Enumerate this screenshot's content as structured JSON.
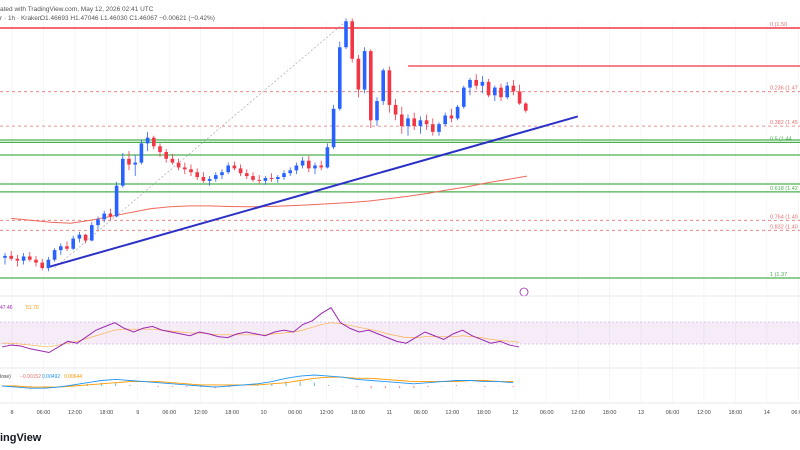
{
  "header": {
    "published": "ated with TradingView.com, May 12, 2026 02:41 UTC",
    "symbol": "r · 1h · Kraken",
    "ohlc": "O1.46693 H1.47046 L1.46030 C1.46067 −0.00621 (−0.42%)"
  },
  "brand": "ingView",
  "rsi_values": [
    "47.46",
    "51.70"
  ],
  "macd_label": "lose)",
  "macd_values": [
    "−0.00152",
    "0.00492",
    "0.00644"
  ],
  "colors": {
    "bull": "#2962ff",
    "bear": "#f23645",
    "trendline": "#2b31c6",
    "fib_red": "#e57373",
    "fib_green": "#4caf50",
    "ma": "#ef6a5a",
    "rsi": "#9c27b0",
    "macd": "#2196f3",
    "signal": "#ff9800"
  },
  "chart_data": {
    "type": "candlestick",
    "interval": "1h",
    "exchange": "Kraken",
    "x_ticks": [
      "8",
      "06:00",
      "12:00",
      "18:00",
      "9",
      "06:00",
      "12:00",
      "18:00",
      "10",
      "06:00",
      "12:00",
      "18:00",
      "11",
      "06:00",
      "12:00",
      "18:00",
      "12",
      "06:00",
      "12:00",
      "18:00",
      "13",
      "06:00",
      "12:00",
      "18:00",
      "14",
      "06:00"
    ],
    "fib_levels": [
      {
        "label": "0 (1.50",
        "ratio": 0,
        "price": 1.5,
        "color": "fib_red"
      },
      {
        "label": "0.236 (1.47",
        "ratio": 0.236,
        "price": 1.47,
        "color": "fib_red"
      },
      {
        "label": "0.382 (1.45",
        "ratio": 0.382,
        "price": 1.45,
        "color": "fib_red"
      },
      {
        "label": "0.5 (1.44",
        "ratio": 0.5,
        "price": 1.44,
        "color": "fib_green"
      },
      {
        "label": "0.618 (1.42",
        "ratio": 0.618,
        "price": 1.42,
        "color": "fib_green"
      },
      {
        "label": "0.764 (1.40",
        "ratio": 0.764,
        "price": 1.4,
        "color": "fib_red"
      },
      {
        "label": "0.832 (1.40",
        "ratio": 0.832,
        "price": 1.4,
        "color": "fib_red"
      },
      {
        "label": "1 (1.37",
        "ratio": 1,
        "price": 1.37,
        "color": "fib_green"
      }
    ],
    "candles": [
      [
        1.3805,
        1.383,
        1.377,
        1.3815
      ],
      [
        1.3815,
        1.384,
        1.379,
        1.38
      ],
      [
        1.38,
        1.382,
        1.376,
        1.379
      ],
      [
        1.379,
        1.383,
        1.377,
        1.3812
      ],
      [
        1.3812,
        1.3835,
        1.3785,
        1.3795
      ],
      [
        1.3795,
        1.3815,
        1.376,
        1.378
      ],
      [
        1.378,
        1.38,
        1.374,
        1.3752
      ],
      [
        1.3752,
        1.381,
        1.3735,
        1.3795
      ],
      [
        1.3795,
        1.3855,
        1.3785,
        1.3845
      ],
      [
        1.3845,
        1.388,
        1.382,
        1.3865
      ],
      [
        1.3865,
        1.389,
        1.384,
        1.3852
      ],
      [
        1.3852,
        1.392,
        1.3845,
        1.3905
      ],
      [
        1.3905,
        1.394,
        1.3885,
        1.3925
      ],
      [
        1.3925,
        1.393,
        1.388,
        1.3895
      ],
      [
        1.3895,
        1.399,
        1.389,
        1.3975
      ],
      [
        1.3975,
        1.402,
        1.395,
        1.4005
      ],
      [
        1.4005,
        1.405,
        1.399,
        1.4035
      ],
      [
        1.4035,
        1.406,
        1.4,
        1.402
      ],
      [
        1.402,
        1.42,
        1.4015,
        1.418
      ],
      [
        1.418,
        1.435,
        1.417,
        1.432
      ],
      [
        1.432,
        1.436,
        1.426,
        1.429
      ],
      [
        1.429,
        1.434,
        1.423,
        1.43
      ],
      [
        1.43,
        1.442,
        1.429,
        1.44
      ],
      [
        1.44,
        1.446,
        1.436,
        1.443
      ],
      [
        1.443,
        1.444,
        1.437,
        1.4385
      ],
      [
        1.4385,
        1.44,
        1.433,
        1.4355
      ],
      [
        1.4355,
        1.437,
        1.43,
        1.432
      ],
      [
        1.432,
        1.4345,
        1.429,
        1.43
      ],
      [
        1.43,
        1.432,
        1.426,
        1.4275
      ],
      [
        1.4275,
        1.43,
        1.424,
        1.4265
      ],
      [
        1.4265,
        1.429,
        1.423,
        1.425
      ],
      [
        1.425,
        1.427,
        1.421,
        1.4225
      ],
      [
        1.4225,
        1.425,
        1.4195,
        1.4205
      ],
      [
        1.4205,
        1.423,
        1.418,
        1.4215
      ],
      [
        1.4215,
        1.425,
        1.42,
        1.4235
      ],
      [
        1.4235,
        1.4265,
        1.4215,
        1.425
      ],
      [
        1.425,
        1.43,
        1.424,
        1.4285
      ],
      [
        1.4285,
        1.4305,
        1.426,
        1.427
      ],
      [
        1.427,
        1.429,
        1.423,
        1.4245
      ],
      [
        1.4245,
        1.4265,
        1.4215,
        1.423
      ],
      [
        1.423,
        1.425,
        1.42,
        1.421
      ],
      [
        1.421,
        1.4235,
        1.419,
        1.4205
      ],
      [
        1.4205,
        1.423,
        1.4185,
        1.422
      ],
      [
        1.422,
        1.4245,
        1.42,
        1.4215
      ],
      [
        1.4215,
        1.4235,
        1.4195,
        1.4225
      ],
      [
        1.4225,
        1.426,
        1.421,
        1.4245
      ],
      [
        1.4245,
        1.4275,
        1.423,
        1.426
      ],
      [
        1.426,
        1.43,
        1.424,
        1.4285
      ],
      [
        1.4285,
        1.433,
        1.427,
        1.431
      ],
      [
        1.431,
        1.4335,
        1.425,
        1.427
      ],
      [
        1.427,
        1.43,
        1.424,
        1.4285
      ],
      [
        1.4285,
        1.431,
        1.426,
        1.4275
      ],
      [
        1.4275,
        1.44,
        1.427,
        1.438
      ],
      [
        1.438,
        1.46,
        1.437,
        1.458
      ],
      [
        1.458,
        1.493,
        1.457,
        1.49
      ],
      [
        1.49,
        1.505,
        1.489,
        1.5035
      ],
      [
        1.5035,
        1.505,
        1.482,
        1.484
      ],
      [
        1.484,
        1.486,
        1.464,
        1.468
      ],
      [
        1.468,
        1.49,
        1.466,
        1.488
      ],
      [
        1.488,
        1.489,
        1.448,
        1.452
      ],
      [
        1.452,
        1.464,
        1.449,
        1.462
      ],
      [
        1.462,
        1.479,
        1.46,
        1.478
      ],
      [
        1.478,
        1.48,
        1.456,
        1.46
      ],
      [
        1.46,
        1.463,
        1.452,
        1.455
      ],
      [
        1.455,
        1.459,
        1.445,
        1.449
      ],
      [
        1.449,
        1.455,
        1.444,
        1.453
      ],
      [
        1.453,
        1.456,
        1.447,
        1.449
      ],
      [
        1.449,
        1.454,
        1.445,
        1.452
      ],
      [
        1.452,
        1.455,
        1.447,
        1.45
      ],
      [
        1.45,
        1.453,
        1.444,
        1.446
      ],
      [
        1.446,
        1.451,
        1.444,
        1.45
      ],
      [
        1.45,
        1.456,
        1.449,
        1.4545
      ],
      [
        1.4545,
        1.458,
        1.451,
        1.453
      ],
      [
        1.453,
        1.46,
        1.452,
        1.459
      ],
      [
        1.459,
        1.47,
        1.458,
        1.469
      ],
      [
        1.469,
        1.474,
        1.465,
        1.473
      ],
      [
        1.473,
        1.476,
        1.468,
        1.47
      ],
      [
        1.47,
        1.475,
        1.466,
        1.472
      ],
      [
        1.472,
        1.4735,
        1.464,
        1.465
      ],
      [
        1.465,
        1.47,
        1.462,
        1.469
      ],
      [
        1.469,
        1.471,
        1.462,
        1.464
      ],
      [
        1.464,
        1.472,
        1.463,
        1.47
      ],
      [
        1.47,
        1.473,
        1.465,
        1.467
      ],
      [
        1.467,
        1.4705,
        1.46,
        1.4607
      ],
      [
        1.4607,
        1.4615,
        1.456,
        1.457
      ]
    ],
    "moving_average": [
      1.401,
      1.4,
      1.399,
      1.3985,
      1.4,
      1.402,
      1.404,
      1.406,
      1.407,
      1.4075,
      1.4075,
      1.4072,
      1.407,
      1.4072,
      1.4076,
      1.408,
      1.4086,
      1.4092,
      1.41,
      1.4112,
      1.4125,
      1.414,
      1.4158,
      1.4175,
      1.4195,
      1.4212,
      1.423
    ],
    "trendline": {
      "from": [
        1.3755,
        0
      ],
      "to": [
        1.454,
        84
      ]
    },
    "rsi": [
      44,
      46,
      45,
      42,
      40,
      38,
      44,
      50,
      48,
      55,
      62,
      66,
      70,
      64,
      60,
      64,
      66,
      62,
      60,
      58,
      56,
      60,
      58,
      55,
      54,
      58,
      60,
      58,
      56,
      60,
      62,
      60,
      68,
      72,
      80,
      86,
      70,
      64,
      60,
      62,
      58,
      54,
      50,
      48,
      54,
      60,
      56,
      52,
      58,
      62,
      56,
      52,
      48,
      50,
      46,
      44
    ],
    "rsi_signal": [
      48,
      48,
      47,
      46,
      45,
      44,
      46,
      48,
      50,
      53,
      56,
      59,
      62,
      63,
      63,
      63,
      63,
      62,
      61,
      60,
      59,
      59,
      58,
      57,
      57,
      57,
      57,
      57,
      57,
      58,
      59,
      60,
      62,
      65,
      68,
      70,
      69,
      67,
      65,
      63,
      61,
      58,
      56,
      54,
      54,
      55,
      55,
      55,
      55,
      56,
      55,
      54,
      52,
      51,
      50,
      49
    ],
    "macd": [
      0.0,
      -0.001,
      -0.002,
      -0.002,
      -0.001,
      0.001,
      0.003,
      0.005,
      0.006,
      0.005,
      0.004,
      0.003,
      0.002,
      0.001,
      0.0,
      -0.001,
      0.0,
      0.001,
      0.002,
      0.004,
      0.007,
      0.009,
      0.01,
      0.009,
      0.008,
      0.006,
      0.005,
      0.004,
      0.003,
      0.002,
      0.003,
      0.004,
      0.005,
      0.005,
      0.004,
      0.004,
      0.003
    ],
    "macd_signal": [
      0.0,
      0.0,
      -0.001,
      -0.001,
      -0.001,
      0.0,
      0.001,
      0.002,
      0.003,
      0.004,
      0.004,
      0.004,
      0.003,
      0.002,
      0.001,
      0.001,
      0.001,
      0.001,
      0.001,
      0.002,
      0.003,
      0.005,
      0.007,
      0.008,
      0.008,
      0.007,
      0.007,
      0.006,
      0.005,
      0.004,
      0.004,
      0.004,
      0.004,
      0.005,
      0.005,
      0.004,
      0.004
    ]
  }
}
